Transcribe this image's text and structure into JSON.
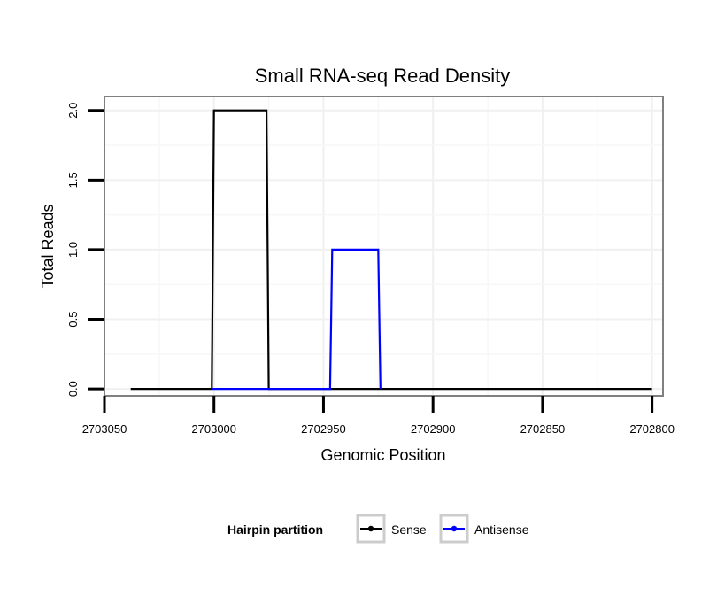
{
  "chart_data": {
    "type": "line",
    "title": "Small RNA-seq Read Density",
    "xlabel": "Genomic Position",
    "ylabel": "Total Reads",
    "xlim": [
      2703050,
      2702795
    ],
    "x_reversed": true,
    "ylim": [
      -0.05,
      2.1
    ],
    "x_ticks": [
      2703050,
      2703000,
      2702950,
      2702900,
      2702850,
      2702800
    ],
    "x_tick_labels": [
      "2703050",
      "2703000",
      "2702950",
      "2702900",
      "2702850",
      "2702800"
    ],
    "y_ticks": [
      0.0,
      0.5,
      1.0,
      1.5,
      2.0
    ],
    "y_tick_labels": [
      "0.0",
      "0.5",
      "1.0",
      "1.5",
      "2.0"
    ],
    "grid": true,
    "legend": {
      "title": "Hairpin partition",
      "placement": "bottom",
      "entries": [
        "Sense",
        "Antisense"
      ]
    },
    "series": [
      {
        "name": "Sense",
        "color": "#000000",
        "points": [
          [
            2703038,
            0
          ],
          [
            2703001,
            0
          ],
          [
            2703000,
            2
          ],
          [
            2702976,
            2
          ],
          [
            2702975,
            0
          ],
          [
            2702957,
            0
          ],
          [
            2702946,
            0
          ],
          [
            2702925,
            0
          ],
          [
            2702924,
            0
          ],
          [
            2702800,
            0
          ]
        ]
      },
      {
        "name": "Antisense",
        "color": "#0000ff",
        "points": [
          [
            2703001,
            0
          ],
          [
            2702976,
            0
          ],
          [
            2702975,
            0
          ],
          [
            2702947,
            0
          ],
          [
            2702946,
            1
          ],
          [
            2702925,
            1
          ],
          [
            2702924,
            0
          ]
        ]
      }
    ]
  }
}
